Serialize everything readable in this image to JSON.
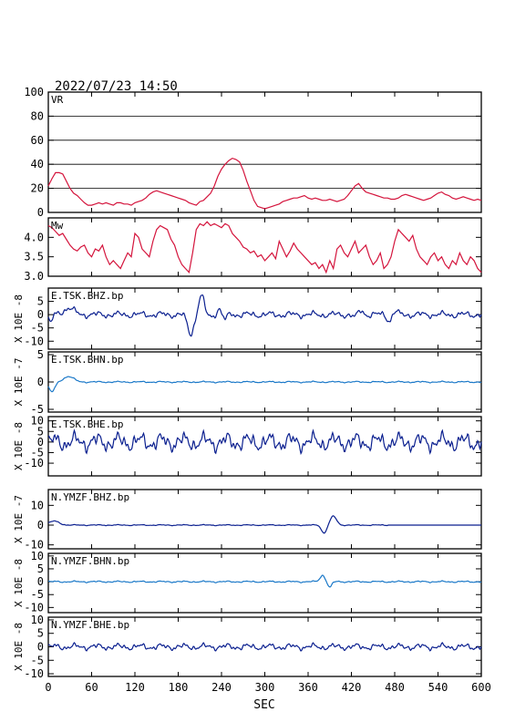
{
  "header": {
    "datetime": "2022/07/23  14:50"
  },
  "colors": {
    "red": "#d4143c",
    "navy": "#0a1f8f",
    "blue": "#1a78c8",
    "axis": "#000000"
  },
  "x_axis": {
    "label": "SEC",
    "range": [
      0,
      600
    ],
    "ticks": [
      0,
      60,
      120,
      180,
      240,
      300,
      360,
      420,
      480,
      540,
      600
    ]
  },
  "chart_data": [
    {
      "type": "line",
      "label": "VR",
      "ylim": [
        0,
        100
      ],
      "yticks": [
        0,
        20,
        40,
        60,
        80,
        100
      ],
      "grid": true,
      "color": "red",
      "series": [
        {
          "x": [
            0,
            5,
            10,
            15,
            20,
            25,
            30,
            35,
            40,
            45,
            50,
            55,
            60,
            65,
            70,
            75,
            80,
            85,
            90,
            95,
            100,
            105,
            110,
            115,
            120,
            125,
            130,
            135,
            140,
            145,
            150,
            155,
            160,
            165,
            170,
            175,
            180,
            185,
            190,
            195,
            200,
            205,
            210,
            215,
            220,
            225,
            230,
            235,
            240,
            245,
            250,
            255,
            260,
            265,
            270,
            275,
            280,
            285,
            290,
            295,
            300,
            305,
            310,
            315,
            320,
            325,
            330,
            335,
            340,
            345,
            350,
            355,
            360,
            365,
            370,
            375,
            380,
            385,
            390,
            395,
            400,
            405,
            410,
            415,
            420,
            425,
            430,
            435,
            440,
            445,
            450,
            455,
            460,
            465,
            470,
            475,
            480,
            485,
            490,
            495,
            500,
            505,
            510,
            515,
            520,
            525,
            530,
            535,
            540,
            545,
            550,
            555,
            560,
            565,
            570,
            575,
            580,
            585,
            590,
            595,
            600
          ],
          "values": [
            22,
            28,
            33,
            33,
            32,
            26,
            20,
            16,
            14,
            11,
            8,
            6,
            6,
            7,
            8,
            7,
            8,
            7,
            6,
            8,
            8,
            7,
            7,
            6,
            8,
            9,
            10,
            12,
            15,
            17,
            18,
            17,
            16,
            15,
            14,
            13,
            12,
            11,
            10,
            8,
            7,
            6,
            9,
            10,
            13,
            16,
            22,
            30,
            36,
            40,
            43,
            45,
            44,
            42,
            35,
            26,
            18,
            10,
            5,
            4,
            3,
            4,
            5,
            6,
            7,
            9,
            10,
            11,
            12,
            12,
            13,
            14,
            12,
            11,
            12,
            11,
            10,
            10,
            11,
            10,
            9,
            10,
            11,
            14,
            18,
            22,
            24,
            20,
            17,
            16,
            15,
            14,
            13,
            12,
            12,
            11,
            11,
            12,
            14,
            15,
            14,
            13,
            12,
            11,
            10,
            11,
            12,
            14,
            16,
            17,
            15,
            14,
            12,
            11,
            12,
            13,
            12,
            11,
            10,
            11,
            10
          ]
        }
      ]
    },
    {
      "type": "line",
      "label": "Mw",
      "ylim": [
        3.0,
        4.5
      ],
      "yticks": [
        3.0,
        3.5,
        4.0
      ],
      "grid": false,
      "color": "red",
      "series": [
        {
          "x": [
            0,
            5,
            10,
            15,
            20,
            25,
            30,
            35,
            40,
            45,
            50,
            55,
            60,
            65,
            70,
            75,
            80,
            85,
            90,
            95,
            100,
            105,
            110,
            115,
            120,
            125,
            130,
            135,
            140,
            145,
            150,
            155,
            160,
            165,
            170,
            175,
            180,
            185,
            190,
            195,
            200,
            205,
            210,
            215,
            220,
            225,
            230,
            235,
            240,
            245,
            250,
            255,
            260,
            265,
            270,
            275,
            280,
            285,
            290,
            295,
            300,
            305,
            310,
            315,
            320,
            325,
            330,
            335,
            340,
            345,
            350,
            355,
            360,
            365,
            370,
            375,
            380,
            385,
            390,
            395,
            400,
            405,
            410,
            415,
            420,
            425,
            430,
            435,
            440,
            445,
            450,
            455,
            460,
            465,
            470,
            475,
            480,
            485,
            490,
            495,
            500,
            505,
            510,
            515,
            520,
            525,
            530,
            535,
            540,
            545,
            550,
            555,
            560,
            565,
            570,
            575,
            580,
            585,
            590,
            595,
            600
          ],
          "values": [
            4.3,
            4.25,
            4.15,
            4.05,
            4.1,
            3.95,
            3.8,
            3.7,
            3.65,
            3.75,
            3.8,
            3.6,
            3.5,
            3.7,
            3.65,
            3.8,
            3.5,
            3.3,
            3.4,
            3.3,
            3.2,
            3.4,
            3.6,
            3.5,
            4.1,
            4.0,
            3.7,
            3.6,
            3.5,
            3.9,
            4.2,
            4.3,
            4.25,
            4.2,
            3.95,
            3.8,
            3.5,
            3.3,
            3.2,
            3.1,
            3.6,
            4.2,
            4.35,
            4.3,
            4.4,
            4.3,
            4.35,
            4.3,
            4.25,
            4.35,
            4.3,
            4.1,
            4.0,
            3.9,
            3.75,
            3.7,
            3.6,
            3.65,
            3.5,
            3.55,
            3.4,
            3.5,
            3.6,
            3.45,
            3.9,
            3.7,
            3.5,
            3.65,
            3.85,
            3.7,
            3.6,
            3.5,
            3.4,
            3.3,
            3.35,
            3.2,
            3.3,
            3.1,
            3.4,
            3.2,
            3.7,
            3.8,
            3.6,
            3.5,
            3.7,
            3.9,
            3.6,
            3.7,
            3.8,
            3.5,
            3.3,
            3.4,
            3.6,
            3.2,
            3.3,
            3.5,
            3.9,
            4.2,
            4.1,
            4.0,
            3.9,
            4.05,
            3.7,
            3.5,
            3.4,
            3.3,
            3.5,
            3.6,
            3.4,
            3.5,
            3.3,
            3.2,
            3.4,
            3.3,
            3.6,
            3.4,
            3.3,
            3.5,
            3.4,
            3.2,
            3.1
          ]
        }
      ]
    },
    {
      "type": "line",
      "label": "E.TSK.BHZ.bp",
      "ylabel": "X 10E -8",
      "ylim": [
        -13,
        10
      ],
      "yticks": [
        -10,
        -5,
        0,
        5
      ],
      "color": "navy",
      "kind": "bhz_tsk",
      "amp": 1
    },
    {
      "type": "line",
      "label": "E.TSK.BHN.bp",
      "ylabel": "X 10E -7",
      "ylim": [
        -5.5,
        5.5
      ],
      "yticks": [
        -5,
        0,
        5
      ],
      "color": "blue",
      "kind": "bhn_tsk",
      "amp": 1
    },
    {
      "type": "line",
      "label": "E.TSK.BHE.bp",
      "ylabel": "X 10E -8",
      "ylim": [
        -16,
        12
      ],
      "yticks": [
        -10,
        -5,
        0,
        5,
        10
      ],
      "color": "navy",
      "kind": "noise",
      "amp": 2.5
    },
    {
      "type": "line",
      "label": "N.YMZF.BHZ.bp",
      "ylabel": "X 10E -7",
      "ylim": [
        -12,
        18
      ],
      "yticks": [
        -10,
        0,
        10
      ],
      "color": "navy",
      "kind": "bhz_ymzf",
      "amp": 1
    },
    {
      "type": "line",
      "label": "N.YMZF.BHN.bp",
      "ylabel": "X 10E -8",
      "ylim": [
        -12,
        11
      ],
      "yticks": [
        -10,
        -5,
        0,
        5,
        10
      ],
      "color": "blue",
      "kind": "bhn_ymzf",
      "amp": 1
    },
    {
      "type": "line",
      "label": "N.YMZF.BHE.bp",
      "ylabel": "X 10E -8",
      "ylim": [
        -11,
        11
      ],
      "yticks": [
        -10,
        -5,
        0,
        5,
        10
      ],
      "color": "navy",
      "kind": "noise",
      "amp": 0.7
    }
  ]
}
